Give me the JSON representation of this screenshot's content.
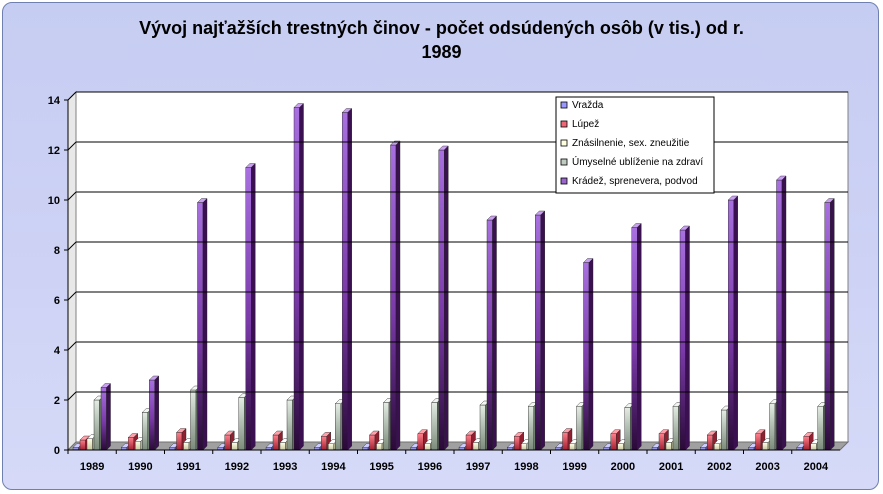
{
  "chart_data": {
    "type": "bar",
    "title_line1": "Vývoj najťažších trestných činov - počet odsúdených osôb (v tis.) od r.",
    "title_line2": "1989",
    "xlabel": "",
    "ylabel": "",
    "ylim": [
      0,
      14
    ],
    "yticks": [
      "0",
      "2",
      "4",
      "6",
      "8",
      "10",
      "12",
      "14"
    ],
    "grid": true,
    "legend_placement": "top-right",
    "categories": [
      "1989",
      "1990",
      "1991",
      "1992",
      "1993",
      "1994",
      "1995",
      "1996",
      "1997",
      "1998",
      "1999",
      "2000",
      "2001",
      "2002",
      "2003",
      "2004"
    ],
    "series": [
      {
        "name": "Vražda",
        "color": "#9999ff",
        "values": [
          0.1,
          0.1,
          0.1,
          0.1,
          0.1,
          0.1,
          0.1,
          0.1,
          0.1,
          0.1,
          0.1,
          0.1,
          0.1,
          0.1,
          0.1,
          0.1
        ]
      },
      {
        "name": "Lúpež",
        "color": "#ee6677",
        "values": [
          0.4,
          0.5,
          0.7,
          0.6,
          0.6,
          0.55,
          0.6,
          0.65,
          0.6,
          0.55,
          0.7,
          0.65,
          0.65,
          0.6,
          0.65,
          0.55
        ]
      },
      {
        "name": "Znásilnenie, sex. zneužitie",
        "color": "#ffffcc",
        "values": [
          0.45,
          0.35,
          0.3,
          0.3,
          0.3,
          0.25,
          0.25,
          0.25,
          0.3,
          0.25,
          0.25,
          0.25,
          0.3,
          0.25,
          0.3,
          0.25
        ]
      },
      {
        "name": "Úmyselné ublíženie na zdraví",
        "color": "#c8d4c8",
        "values": [
          2.0,
          1.5,
          2.4,
          2.1,
          2.0,
          1.85,
          1.9,
          1.9,
          1.8,
          1.75,
          1.75,
          1.7,
          1.75,
          1.6,
          1.85,
          1.75
        ]
      },
      {
        "name": "Krádež, sprenevera, podvod",
        "color": "#9966cc",
        "values": [
          2.5,
          2.8,
          9.9,
          11.3,
          13.7,
          13.5,
          12.2,
          12.0,
          9.2,
          9.4,
          7.5,
          8.9,
          8.8,
          10.0,
          10.8,
          9.9
        ]
      }
    ]
  }
}
